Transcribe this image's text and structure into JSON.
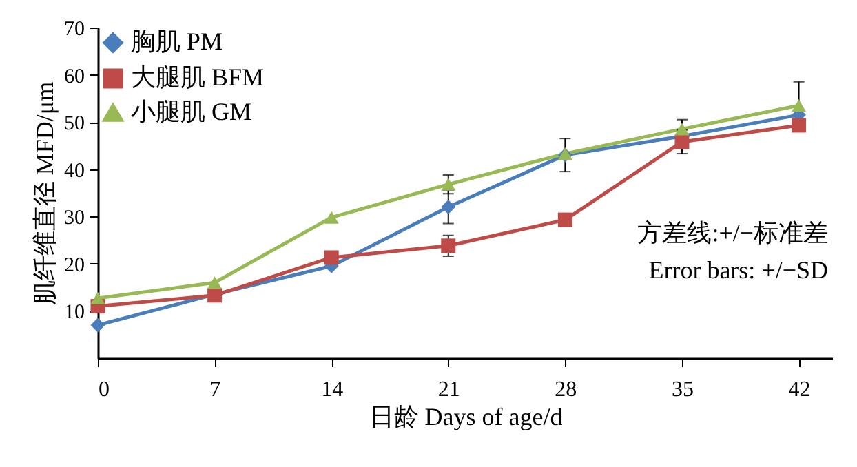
{
  "chart_data": {
    "type": "line",
    "xlabel": "日龄 Days of age/d",
    "ylabel": "肌纤维直径 MFD/μm",
    "x": [
      0,
      7,
      14,
      21,
      28,
      35,
      42
    ],
    "series": [
      {
        "name": "胸肌  PM",
        "color": "#4a7ebb",
        "marker": "diamond",
        "values": [
          7,
          13.5,
          19.5,
          32,
          43,
          47,
          51.5
        ],
        "errors": [
          null,
          null,
          null,
          3.5,
          3.5,
          null,
          null
        ]
      },
      {
        "name": "大腿肌  BFM",
        "color": "#be4b48",
        "marker": "square",
        "values": [
          11,
          13.3,
          21.3,
          23.8,
          29.3,
          45.8,
          49.3
        ],
        "errors": [
          null,
          null,
          null,
          2.2,
          null,
          2.5,
          null
        ]
      },
      {
        "name": "小腿肌  GM",
        "color": "#98b954",
        "marker": "triangle",
        "values": [
          12.7,
          16,
          29.8,
          36.8,
          43.3,
          48.5,
          53.5
        ],
        "errors": [
          null,
          null,
          null,
          2,
          null,
          2,
          5
        ]
      }
    ],
    "xlim": [
      0,
      44
    ],
    "xticks": [
      0,
      7,
      14,
      21,
      28,
      35,
      42
    ],
    "ylim": [
      0,
      70
    ],
    "yticks": [
      10,
      20,
      30,
      40,
      50,
      60,
      70
    ],
    "legend": "top left",
    "grid": false,
    "annotations": [
      "方差线:+/−标准差",
      "Error bars: +/−SD"
    ]
  }
}
